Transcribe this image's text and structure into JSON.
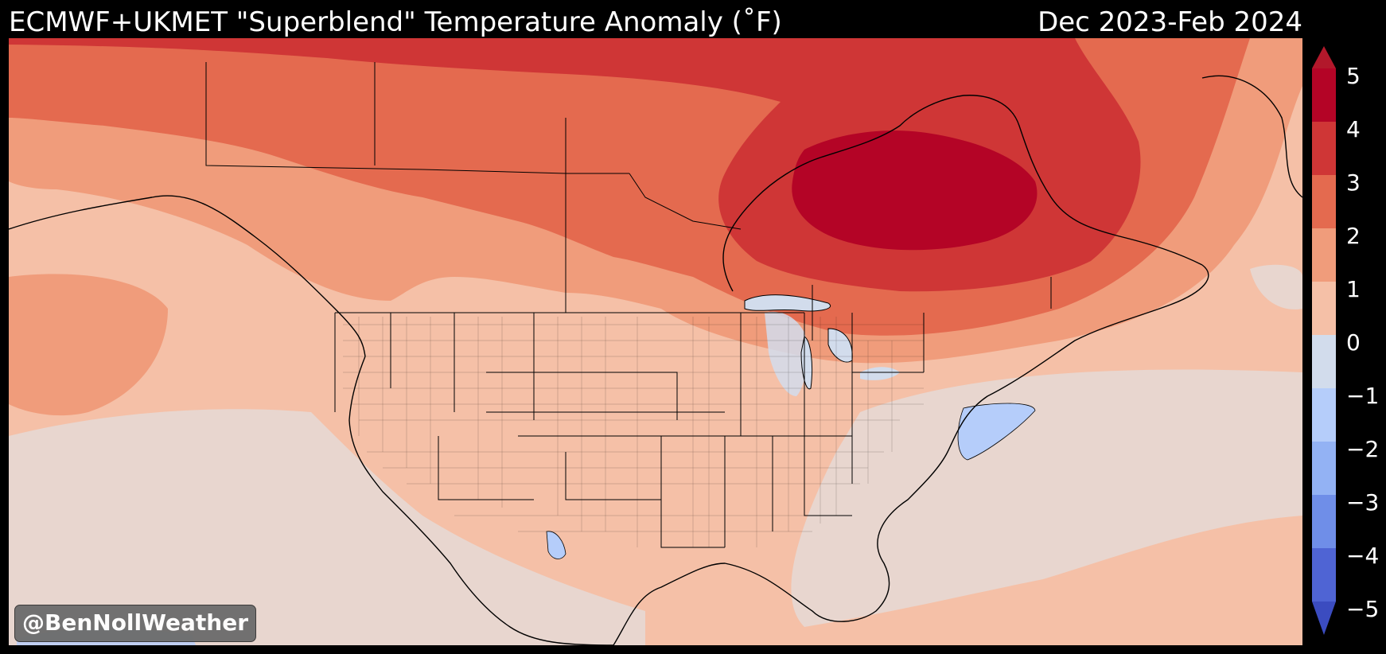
{
  "header": {
    "title": "ECMWF+UKMET \"Superblend\" Temperature Anomaly (˚F)",
    "period": "Dec 2023-Feb 2024"
  },
  "credit": "@BenNollWeather",
  "legend": {
    "ticks": [
      "5",
      "4",
      "3",
      "2",
      "1",
      "0",
      "−1",
      "−2",
      "−3",
      "−4",
      "−5"
    ],
    "colors": {
      "above_5": "#b2182b",
      "4_5": "#b40426",
      "3_4": "#cf3636",
      "2_3": "#e46a4f",
      "1_2": "#f09c7b",
      "0_1": "#f5c0a7",
      "neg1_0": "#e8d6cf",
      "neg2_neg1": "#d2dcec",
      "neg3_neg2": "#b5cdfa",
      "neg4_neg3": "#93b2f4",
      "neg5_neg4": "#6f8ee8",
      "below_neg5": "#4f64d4",
      "ocean_base": "#f5c0a7"
    }
  }
}
